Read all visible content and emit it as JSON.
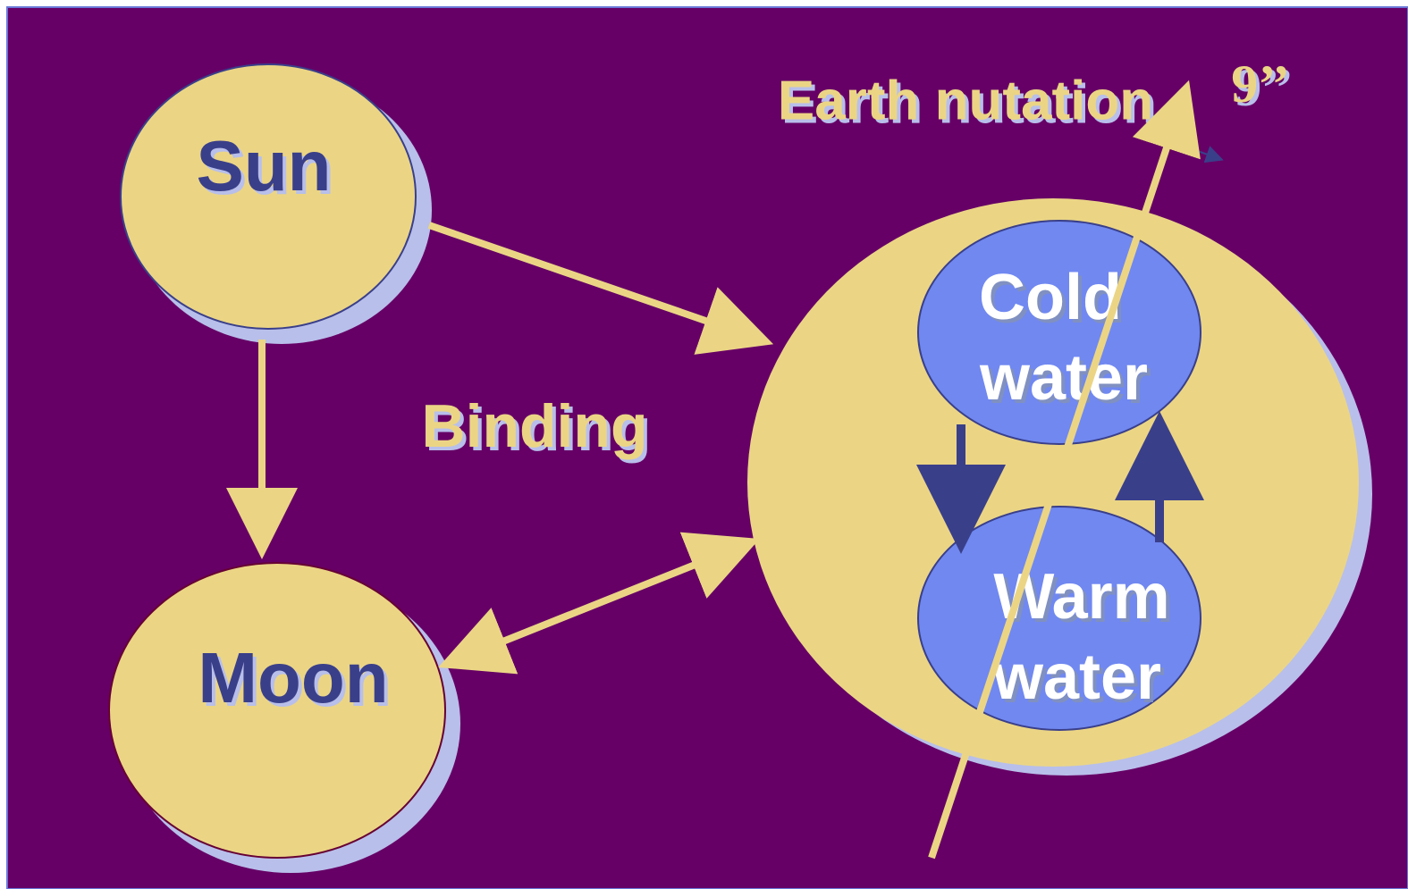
{
  "nodes": [
    {
      "label": "Sun"
    },
    {
      "label": "Moon"
    },
    {
      "lines": [
        "Cold",
        "water"
      ]
    },
    {
      "lines": [
        "Warm",
        "water"
      ]
    }
  ],
  "labels": {
    "binding": "Binding",
    "nutation": "Earth nutation",
    "angle": "9’’"
  }
}
